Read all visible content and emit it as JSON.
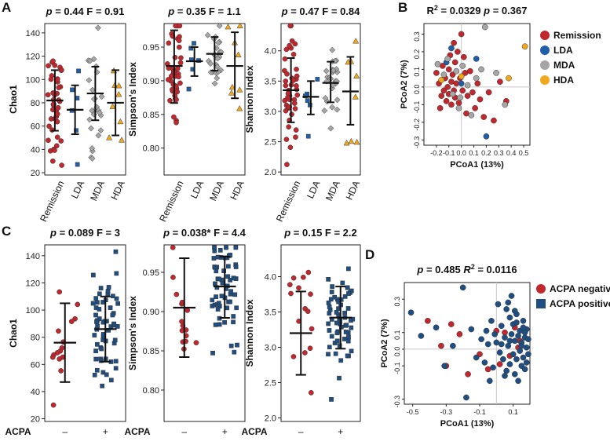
{
  "panel_labels": [
    "A",
    "B",
    "C",
    "D"
  ],
  "colors": {
    "Remission": "#c1272d",
    "LDA": "#1f5ea8",
    "MDA": "#a6a6a6",
    "HDA": "#f2a81d",
    "ACPA negative": "#c1272d",
    "ACPA positive": "#1f4f82"
  },
  "chart_data": [
    {
      "id": "A1",
      "type": "scatter",
      "subtype": "dot-plot-with-error-bars",
      "stat_p": "0.44",
      "stat_F": "0.91",
      "ylabel": "Chao1",
      "ylim": [
        18,
        148
      ],
      "yticks": [
        20,
        40,
        60,
        80,
        100,
        120,
        140
      ],
      "categories": [
        "Remission",
        "LDA",
        "MDA",
        "HDA"
      ],
      "summary": [
        {
          "group": "Remission",
          "mean": 82,
          "lower": 56,
          "upper": 108
        },
        {
          "group": "LDA",
          "mean": 74,
          "lower": 53,
          "upper": 95
        },
        {
          "group": "MDA",
          "mean": 88,
          "lower": 65,
          "upper": 111
        },
        {
          "group": "HDA",
          "mean": 80,
          "lower": 52,
          "upper": 108
        }
      ]
    },
    {
      "id": "A2",
      "type": "scatter",
      "subtype": "dot-plot-with-error-bars",
      "stat_p": "0.35",
      "stat_F": "1.1",
      "ylabel": "Simpson's Index",
      "ylim": [
        0.76,
        0.985
      ],
      "yticks": [
        0.8,
        0.85,
        0.9,
        0.95
      ],
      "categories": [
        "Remission",
        "LDA",
        "MDA",
        "HDA"
      ],
      "summary": [
        {
          "group": "Remission",
          "mean": 0.922,
          "lower": 0.867,
          "upper": 0.975
        },
        {
          "group": "LDA",
          "mean": 0.929,
          "lower": 0.907,
          "upper": 0.95
        },
        {
          "group": "MDA",
          "mean": 0.94,
          "lower": 0.915,
          "upper": 0.965
        },
        {
          "group": "HDA",
          "mean": 0.922,
          "lower": 0.874,
          "upper": 0.972
        }
      ]
    },
    {
      "id": "A3",
      "type": "scatter",
      "subtype": "dot-plot-with-error-bars",
      "stat_p": "0.47",
      "stat_F": "0.84",
      "ylabel": "Shannon Index",
      "ylim": [
        1.95,
        4.45
      ],
      "yticks": [
        2.0,
        2.5,
        3.0,
        3.5,
        4.0
      ],
      "categories": [
        "Remission",
        "LDA",
        "MDA",
        "HDA"
      ],
      "summary": [
        {
          "group": "Remission",
          "mean": 3.35,
          "lower": 2.82,
          "upper": 3.88
        },
        {
          "group": "LDA",
          "mean": 3.24,
          "lower": 2.95,
          "upper": 3.5
        },
        {
          "group": "MDA",
          "mean": 3.47,
          "lower": 3.15,
          "upper": 3.82
        },
        {
          "group": "HDA",
          "mean": 3.33,
          "lower": 2.78,
          "upper": 3.9
        }
      ]
    },
    {
      "id": "B",
      "type": "scatter",
      "subtype": "pcoa",
      "stat_r2": "0.0329",
      "stat_p": "0.367",
      "xlabel": "PCoA1 (13%)",
      "ylabel": "PCoA2 (7%)",
      "xlim": [
        -0.3,
        0.55
      ],
      "ylim": [
        -0.33,
        0.36
      ],
      "xticks": [
        -0.2,
        -0.1,
        0.0,
        0.1,
        0.2,
        0.3,
        0.4,
        0.5
      ],
      "yticks": [
        -0.3,
        -0.2,
        -0.1,
        0.0,
        0.1,
        0.2,
        0.3
      ],
      "legend": [
        "Remission",
        "LDA",
        "MDA",
        "HDA"
      ],
      "legend_position": "right",
      "series": [
        {
          "name": "Remission",
          "points": [
            [
              -0.2,
              0.08
            ],
            [
              -0.18,
              0.02
            ],
            [
              -0.16,
              -0.05
            ],
            [
              -0.15,
              0.12
            ],
            [
              -0.14,
              -0.02
            ],
            [
              -0.13,
              0.05
            ],
            [
              -0.12,
              -0.08
            ],
            [
              -0.11,
              0.0
            ],
            [
              -0.1,
              0.1
            ],
            [
              -0.1,
              -0.04
            ],
            [
              -0.09,
              0.18
            ],
            [
              -0.08,
              0.03
            ],
            [
              -0.08,
              -0.1
            ],
            [
              -0.07,
              0.07
            ],
            [
              -0.06,
              -0.02
            ],
            [
              -0.05,
              0.14
            ],
            [
              -0.05,
              -0.06
            ],
            [
              -0.04,
              0.02
            ],
            [
              -0.03,
              0.2
            ],
            [
              -0.02,
              -0.09
            ],
            [
              -0.01,
              0.05
            ],
            [
              0.0,
              0.3
            ],
            [
              0.01,
              -0.02
            ],
            [
              0.02,
              0.17
            ],
            [
              0.03,
              0.08
            ],
            [
              0.05,
              -0.05
            ],
            [
              0.07,
              0.09
            ],
            [
              0.09,
              -0.03
            ],
            [
              0.11,
              -0.12
            ],
            [
              0.13,
              0.02
            ],
            [
              0.15,
              -0.07
            ],
            [
              0.18,
              -0.17
            ],
            [
              0.22,
              -0.03
            ],
            [
              0.26,
              -0.19
            ],
            [
              0.31,
              0.03
            ],
            [
              0.36,
              -0.08
            ],
            [
              -0.17,
              -0.12
            ],
            [
              -0.06,
              0.25
            ],
            [
              0.04,
              -0.15
            ]
          ]
        },
        {
          "name": "LDA",
          "points": [
            [
              -0.12,
              0.14
            ],
            [
              -0.08,
              0.22
            ],
            [
              0.0,
              0.02
            ],
            [
              0.12,
              0.16
            ],
            [
              0.2,
              -0.28
            ]
          ]
        },
        {
          "name": "MDA",
          "points": [
            [
              -0.19,
              0.13
            ],
            [
              -0.14,
              0.07
            ],
            [
              -0.11,
              0.16
            ],
            [
              -0.07,
              -0.04
            ],
            [
              -0.04,
              0.09
            ],
            [
              -0.02,
              -0.12
            ],
            [
              0.01,
              0.12
            ],
            [
              0.05,
              0.01
            ],
            [
              0.08,
              -0.16
            ],
            [
              0.12,
              0.05
            ],
            [
              0.16,
              0.1
            ],
            [
              0.19,
              0.34
            ],
            [
              0.28,
              0.08
            ],
            [
              0.35,
              -0.1
            ],
            [
              -0.01,
              -0.06
            ]
          ]
        },
        {
          "name": "HDA",
          "points": [
            [
              -0.16,
              0.04
            ],
            [
              0.0,
              0.06
            ],
            [
              0.38,
              0.05
            ],
            [
              0.51,
              0.23
            ]
          ]
        }
      ]
    },
    {
      "id": "C1",
      "type": "scatter",
      "subtype": "dot-plot-with-error-bars",
      "stat_p": "0.089",
      "stat_F": "3",
      "ylabel": "Chao1",
      "ylim": [
        18,
        148
      ],
      "yticks": [
        20,
        40,
        60,
        80,
        100,
        120,
        140
      ],
      "xtitle": "ACPA",
      "categories": [
        "–",
        "+"
      ],
      "summary": [
        {
          "group": "ACPA negative",
          "mean": 76,
          "lower": 47,
          "upper": 105
        },
        {
          "group": "ACPA positive",
          "mean": 86,
          "lower": 62,
          "upper": 110
        }
      ]
    },
    {
      "id": "C2",
      "type": "scatter",
      "subtype": "dot-plot-with-error-bars",
      "stat_p": "0.038*",
      "stat_F": "4.4",
      "ylabel": "Simpson's Index",
      "ylim": [
        0.76,
        0.985
      ],
      "yticks": [
        0.8,
        0.85,
        0.9,
        0.95
      ],
      "xtitle": "ACPA",
      "categories": [
        "–",
        "+"
      ],
      "summary": [
        {
          "group": "ACPA negative",
          "mean": 0.905,
          "lower": 0.842,
          "upper": 0.968
        },
        {
          "group": "ACPA positive",
          "mean": 0.932,
          "lower": 0.892,
          "upper": 0.97
        }
      ]
    },
    {
      "id": "C3",
      "type": "scatter",
      "subtype": "dot-plot-with-error-bars",
      "stat_p": "0.15",
      "stat_F": "2.2",
      "ylabel": "Shannon Index",
      "ylim": [
        1.95,
        4.45
      ],
      "yticks": [
        2.0,
        2.5,
        3.0,
        3.5,
        4.0
      ],
      "xtitle": "ACPA",
      "categories": [
        "–",
        "+"
      ],
      "summary": [
        {
          "group": "ACPA negative",
          "mean": 3.2,
          "lower": 2.61,
          "upper": 3.79
        },
        {
          "group": "ACPA positive",
          "mean": 3.42,
          "lower": 2.98,
          "upper": 3.86
        }
      ]
    },
    {
      "id": "D",
      "type": "scatter",
      "subtype": "pcoa",
      "stat_p": "0.485",
      "stat_r2": "0.0116",
      "xlabel": "PCoA1 (13%)",
      "ylabel": "PCoA2 (7%)",
      "xlim": [
        -0.55,
        0.2
      ],
      "ylim": [
        -0.33,
        0.4
      ],
      "xticks": [
        -0.5,
        -0.3,
        -0.1,
        0.1
      ],
      "yticks": [
        -0.3,
        -0.1,
        0.0,
        0.1,
        0.3
      ],
      "legend": [
        "ACPA negative",
        "ACPA positive"
      ],
      "legend_position": "right",
      "series": [
        {
          "name": "ACPA negative",
          "points": [
            [
              -0.41,
              0.17
            ],
            [
              -0.33,
              0.02
            ],
            [
              -0.27,
              0.15
            ],
            [
              -0.22,
              0.09
            ],
            [
              -0.1,
              -0.03
            ],
            [
              -0.05,
              -0.12
            ],
            [
              0.0,
              0.11
            ],
            [
              0.05,
              0.1
            ],
            [
              0.08,
              -0.04
            ],
            [
              0.11,
              0.13
            ],
            [
              0.14,
              0.05
            ],
            [
              -0.17,
              -0.15
            ],
            [
              0.02,
              -0.09
            ],
            [
              0.13,
              0.01
            ],
            [
              -0.3,
              -0.1
            ]
          ]
        },
        {
          "name": "ACPA positive",
          "points": [
            [
              -0.51,
              0.22
            ],
            [
              -0.45,
              0.08
            ],
            [
              -0.36,
              0.13
            ],
            [
              -0.31,
              -0.1
            ],
            [
              -0.26,
              0.02
            ],
            [
              -0.2,
              0.37
            ],
            [
              -0.18,
              -0.29
            ],
            [
              -0.15,
              0.12
            ],
            [
              -0.12,
              -0.05
            ],
            [
              -0.09,
              0.06
            ],
            [
              -0.07,
              -0.08
            ],
            [
              -0.05,
              0.03
            ],
            [
              -0.03,
              0.17
            ],
            [
              -0.02,
              -0.11
            ],
            [
              0.0,
              0.04
            ],
            [
              0.01,
              0.27
            ],
            [
              0.02,
              -0.02
            ],
            [
              0.03,
              0.14
            ],
            [
              0.04,
              -0.06
            ],
            [
              0.05,
              0.07
            ],
            [
              0.06,
              0.24
            ],
            [
              0.06,
              -0.13
            ],
            [
              0.07,
              0.02
            ],
            [
              0.08,
              0.19
            ],
            [
              0.08,
              -0.09
            ],
            [
              0.09,
              0.09
            ],
            [
              0.1,
              -0.03
            ],
            [
              0.1,
              0.15
            ],
            [
              0.11,
              0.05
            ],
            [
              0.11,
              -0.15
            ],
            [
              0.12,
              0.21
            ],
            [
              0.12,
              -0.06
            ],
            [
              0.13,
              0.08
            ],
            [
              0.14,
              -0.01
            ],
            [
              0.14,
              0.11
            ],
            [
              0.15,
              -0.1
            ],
            [
              0.15,
              0.04
            ],
            [
              0.16,
              0.17
            ],
            [
              0.16,
              -0.05
            ],
            [
              0.17,
              0.07
            ],
            [
              0.17,
              -0.12
            ],
            [
              0.18,
              0.01
            ],
            [
              0.18,
              0.12
            ],
            [
              0.19,
              -0.03
            ],
            [
              0.19,
              0.06
            ],
            [
              0.09,
              0.32
            ],
            [
              -0.04,
              -0.19
            ],
            [
              0.13,
              -0.19
            ],
            [
              0.07,
              0.28
            ],
            [
              0.16,
              0.13
            ],
            [
              0.05,
              -0.16
            ],
            [
              0.11,
              0.23
            ],
            [
              -0.01,
              0.09
            ],
            [
              0.15,
              0.02
            ],
            [
              0.18,
              -0.08
            ],
            [
              -0.06,
              0.11
            ],
            [
              0.03,
              0.03
            ],
            [
              0.12,
              0.16
            ],
            [
              0.17,
              0.1
            ],
            [
              0.08,
              0.05
            ]
          ]
        }
      ]
    }
  ]
}
